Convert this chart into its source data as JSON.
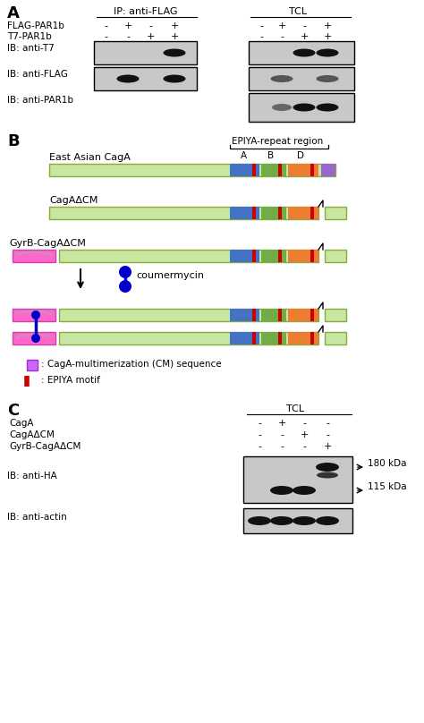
{
  "panel_A": {
    "label": "A",
    "ip_label": "IP: anti-FLAG",
    "tcl_label": "TCL",
    "flag_label": "FLAG-PAR1b",
    "t7_label": "T7-PAR1b",
    "blot1_label": "IB: anti-T7",
    "blot2_label": "IB: anti-FLAG",
    "blot3_label": "IB: anti-PAR1b",
    "flag_ip_signs": [
      "-",
      "+",
      "-",
      "+"
    ],
    "t7_ip_signs": [
      "-",
      "-",
      "+",
      "+"
    ],
    "flag_tcl_signs": [
      "-",
      "+",
      "-",
      "+"
    ],
    "t7_tcl_signs": [
      "-",
      "-",
      "+",
      "+"
    ]
  },
  "panel_B": {
    "label": "B",
    "epiya_label": "EPIYA-repeat region",
    "row1_label": "East Asian CagA",
    "row2_label": "CagAΔCM",
    "row3_label": "GyrB-CagAΔCM",
    "light_green": "#c8e6a0",
    "blue": "#4472c4",
    "mid_green": "#70ad47",
    "orange": "#ed7d31",
    "red": "#cc0000",
    "purple": "#9966cc",
    "pink": "#ff66cc",
    "dark_blue": "#0000cc",
    "abcd_labels": [
      "A",
      "B",
      "D"
    ],
    "coumermycin_label": "coumermycin",
    "legend_cm": ": CagA-multimerization (CM) sequence",
    "legend_epiya": ": EPIYA motif"
  },
  "panel_C": {
    "label": "C",
    "tcl_label": "TCL",
    "row1_label": "CagA",
    "row2_label": "CagAΔCM",
    "row3_label": "GyrB-CagAΔCM",
    "signs_row1": [
      "-",
      "+",
      "-",
      "-"
    ],
    "signs_row2": [
      "-",
      "-",
      "+",
      "-"
    ],
    "signs_row3": [
      "-",
      "-",
      "-",
      "+"
    ],
    "blot1_label": "IB: anti-HA",
    "blot2_label": "IB: anti-actin",
    "marker1": "180 kDa",
    "marker2": "115 kDa"
  },
  "bg": "#ffffff",
  "blot_bg": "#c8c8c8",
  "band_color": "#111111"
}
